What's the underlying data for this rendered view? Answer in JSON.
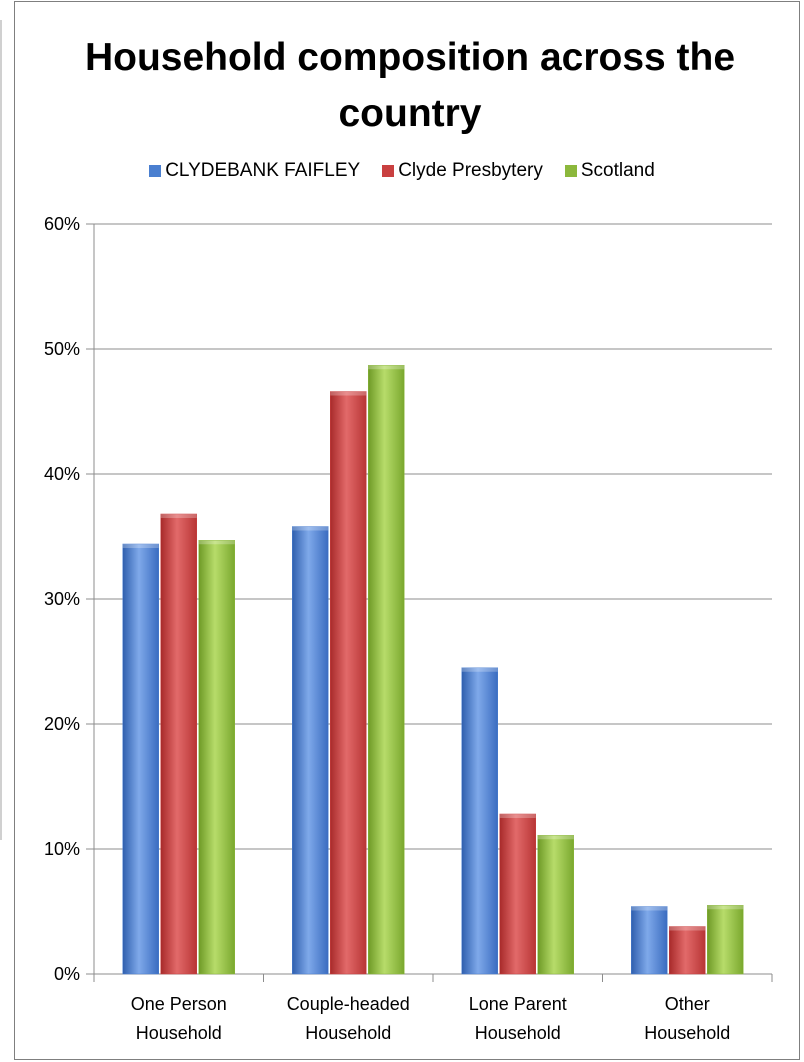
{
  "chart_data": {
    "type": "bar",
    "title": "Household composition across the country",
    "categories": [
      "One Person Household",
      "Couple-headed Household",
      "Lone Parent Household",
      "Other Household"
    ],
    "category_lines": [
      [
        "One Person",
        "Household"
      ],
      [
        "Couple-headed",
        "Household"
      ],
      [
        "Lone Parent",
        "Household"
      ],
      [
        "Other",
        "Household"
      ]
    ],
    "series": [
      {
        "name": "CLYDEBANK FAIFLEY",
        "values": [
          34.4,
          35.8,
          24.5,
          5.4
        ],
        "color": "#4a7fd0"
      },
      {
        "name": "Clyde Presbytery",
        "values": [
          36.8,
          46.6,
          12.8,
          3.8
        ],
        "color": "#c94040"
      },
      {
        "name": "Scotland",
        "values": [
          34.7,
          48.7,
          11.1,
          5.5
        ],
        "color": "#8cb83c"
      }
    ],
    "ylim": [
      0,
      60
    ],
    "yticks": [
      "0%",
      "10%",
      "20%",
      "30%",
      "40%",
      "50%",
      "60%"
    ],
    "grid": true,
    "legend": "top"
  }
}
